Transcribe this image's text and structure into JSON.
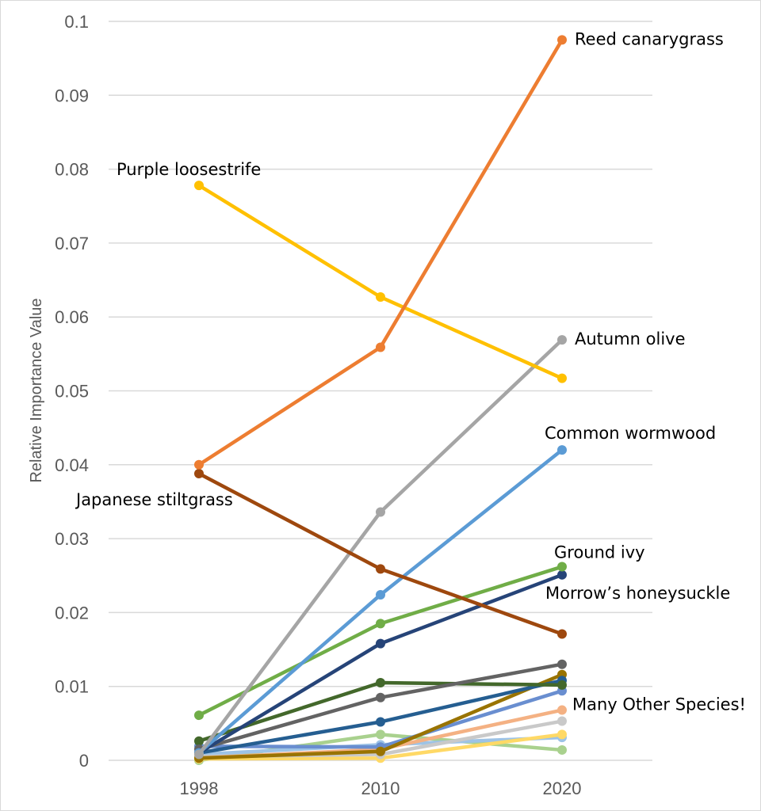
{
  "chart_data": {
    "type": "line",
    "title": "",
    "xlabel": "",
    "ylabel": "Relative Importance Value",
    "x": [
      "1998",
      "2010",
      "2020"
    ],
    "ylim": [
      0,
      0.1
    ],
    "yticks": [
      "0",
      "0.01",
      "0.02",
      "0.03",
      "0.04",
      "0.05",
      "0.06",
      "0.07",
      "0.08",
      "0.09",
      "0.1"
    ],
    "ytick_values": [
      0,
      0.01,
      0.02,
      0.03,
      0.04,
      0.05,
      0.06,
      0.07,
      0.08,
      0.09,
      0.1
    ],
    "grid": true,
    "legend": "none",
    "series": [
      {
        "name": "Light green species",
        "color": "#a9d18e",
        "values": [
          0.0,
          0.0035,
          0.0014
        ]
      },
      {
        "name": "Light blue species",
        "color": "#9dc3e6",
        "values": [
          0.0008,
          0.0021,
          0.0031
        ]
      },
      {
        "name": "Pale yellow species",
        "color": "#ffd966",
        "values": [
          0.0002,
          0.0003,
          0.0035
        ]
      },
      {
        "name": "Light gray species",
        "color": "#c9c9c9",
        "values": [
          0.0005,
          0.0008,
          0.0053
        ]
      },
      {
        "name": "Peach species",
        "color": "#f4b183",
        "values": [
          0.0003,
          0.0015,
          0.0068
        ]
      },
      {
        "name": "Cornflower species",
        "color": "#698ed0",
        "values": [
          0.0019,
          0.0018,
          0.0094
        ]
      },
      {
        "name": "Olive species",
        "color": "#997300",
        "values": [
          0.0003,
          0.0012,
          0.0116
        ]
      },
      {
        "name": "Steel blue species",
        "color": "#255e91",
        "values": [
          0.001,
          0.0052,
          0.0108
        ]
      },
      {
        "name": "Dark green species",
        "color": "#43682b",
        "values": [
          0.0026,
          0.0105,
          0.0102
        ]
      },
      {
        "name": "Dark gray species",
        "color": "#636363",
        "values": [
          0.0015,
          0.0085,
          0.013
        ]
      },
      {
        "name": "Morrow's honeysuckle",
        "color": "#264478",
        "values": [
          0.001,
          0.0158,
          0.0251
        ]
      },
      {
        "name": "Ground ivy",
        "color": "#70ad47",
        "values": [
          0.0061,
          0.0185,
          0.0262
        ]
      },
      {
        "name": "Common wormwood",
        "color": "#5b9bd5",
        "values": [
          0.001,
          0.0224,
          0.042
        ]
      },
      {
        "name": "Autumn olive",
        "color": "#a5a5a5",
        "values": [
          0.0008,
          0.0336,
          0.0569
        ]
      },
      {
        "name": "Japanese stiltgrass",
        "color": "#9e480e",
        "values": [
          0.0388,
          0.0259,
          0.0171
        ]
      },
      {
        "name": "Purple loosestrife",
        "color": "#ffc000",
        "values": [
          0.0778,
          0.0627,
          0.0517
        ]
      },
      {
        "name": "Reed canarygrass",
        "color": "#ed7d31",
        "values": [
          0.04,
          0.0559,
          0.0975
        ]
      }
    ],
    "annotations": [
      {
        "text": "Reed canarygrass",
        "series": "Reed canarygrass",
        "at": "2020",
        "anchor": "right"
      },
      {
        "text": "Purple loosestrife",
        "series": "Purple loosestrife",
        "at": "1998",
        "anchor": "above"
      },
      {
        "text": "Autumn olive",
        "series": "Autumn olive",
        "at": "2020",
        "anchor": "right"
      },
      {
        "text": "Common wormwood",
        "series": "Common wormwood",
        "at": "2020",
        "anchor": "above"
      },
      {
        "text": "Japanese stiltgrass",
        "series": "Japanese stiltgrass",
        "at": "1998",
        "anchor": "below"
      },
      {
        "text": "Ground ivy",
        "series": "Ground ivy",
        "at": "2020",
        "anchor": "above"
      },
      {
        "text": "Morrow’s honeysuckle",
        "series": "Morrow's honeysuckle",
        "at": "2020",
        "anchor": "below"
      },
      {
        "text": "Many Other Species!",
        "series": "Peach species",
        "at": "2020",
        "anchor": "right"
      }
    ]
  }
}
